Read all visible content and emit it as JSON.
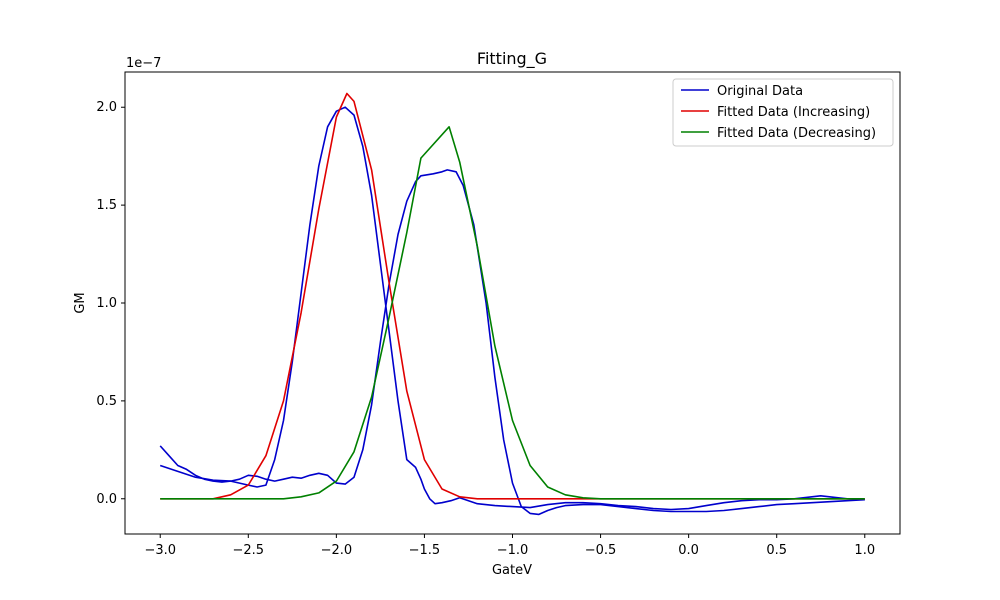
{
  "chart_data": {
    "type": "line",
    "title": "Fitting_G",
    "xlabel": "GateV",
    "ylabel": "GM",
    "y_offset_label": "1e−7",
    "xlim": [
      -3.2,
      1.2
    ],
    "ylim": [
      -0.18,
      2.18
    ],
    "x_ticks": [
      -3.0,
      -2.5,
      -2.0,
      -1.5,
      -1.0,
      -0.5,
      0.0,
      0.5,
      1.0
    ],
    "x_tick_labels": [
      "−3.0",
      "−2.5",
      "−2.0",
      "−1.5",
      "−1.0",
      "−0.5",
      "0.0",
      "0.5",
      "1.0"
    ],
    "y_ticks": [
      0.0,
      0.5,
      1.0,
      1.5,
      2.0
    ],
    "y_tick_labels": [
      "0.0",
      "0.5",
      "1.0",
      "1.5",
      "2.0"
    ],
    "grid": false,
    "legend_position": "top-right",
    "series": [
      {
        "name": "Original Data",
        "color": "#0000cc",
        "points": [
          [
            -3.0,
            0.27
          ],
          [
            -2.95,
            0.22
          ],
          [
            -2.9,
            0.17
          ],
          [
            -2.85,
            0.15
          ],
          [
            -2.8,
            0.12
          ],
          [
            -2.75,
            0.1
          ],
          [
            -2.7,
            0.09
          ],
          [
            -2.65,
            0.085
          ],
          [
            -2.6,
            0.09
          ],
          [
            -2.55,
            0.1
          ],
          [
            -2.5,
            0.12
          ],
          [
            -2.45,
            0.115
          ],
          [
            -2.4,
            0.1
          ],
          [
            -2.35,
            0.09
          ],
          [
            -2.3,
            0.1
          ],
          [
            -2.25,
            0.11
          ],
          [
            -2.2,
            0.105
          ],
          [
            -2.15,
            0.12
          ],
          [
            -2.1,
            0.13
          ],
          [
            -2.05,
            0.12
          ],
          [
            -2.0,
            0.08
          ],
          [
            -1.95,
            0.075
          ],
          [
            -1.9,
            0.11
          ],
          [
            -1.85,
            0.25
          ],
          [
            -1.8,
            0.48
          ],
          [
            -1.75,
            0.8
          ],
          [
            -1.7,
            1.1
          ],
          [
            -1.65,
            1.35
          ],
          [
            -1.6,
            1.52
          ],
          [
            -1.55,
            1.62
          ],
          [
            -1.52,
            1.65
          ],
          [
            -1.45,
            1.66
          ],
          [
            -1.4,
            1.67
          ],
          [
            -1.37,
            1.68
          ],
          [
            -1.32,
            1.67
          ],
          [
            -1.28,
            1.6
          ],
          [
            -1.22,
            1.4
          ],
          [
            -1.15,
            1.0
          ],
          [
            -1.1,
            0.62
          ],
          [
            -1.05,
            0.3
          ],
          [
            -1.0,
            0.08
          ],
          [
            -0.95,
            -0.04
          ],
          [
            -0.9,
            -0.075
          ],
          [
            -0.85,
            -0.08
          ],
          [
            -0.8,
            -0.06
          ],
          [
            -0.75,
            -0.045
          ],
          [
            -0.7,
            -0.035
          ],
          [
            -0.6,
            -0.03
          ],
          [
            -0.5,
            -0.03
          ],
          [
            -0.4,
            -0.04
          ],
          [
            -0.3,
            -0.05
          ],
          [
            -0.2,
            -0.06
          ],
          [
            -0.1,
            -0.065
          ],
          [
            0.0,
            -0.065
          ],
          [
            0.1,
            -0.065
          ],
          [
            0.2,
            -0.06
          ],
          [
            0.3,
            -0.05
          ],
          [
            0.4,
            -0.04
          ],
          [
            0.5,
            -0.03
          ],
          [
            0.6,
            -0.025
          ],
          [
            0.7,
            -0.02
          ],
          [
            0.8,
            -0.015
          ],
          [
            0.9,
            -0.01
          ],
          [
            1.0,
            -0.005
          ]
        ]
      },
      {
        "name": "",
        "color": "#0000cc",
        "points": [
          [
            -3.0,
            0.17
          ],
          [
            -2.9,
            0.14
          ],
          [
            -2.8,
            0.11
          ],
          [
            -2.7,
            0.095
          ],
          [
            -2.6,
            0.09
          ],
          [
            -2.5,
            0.07
          ],
          [
            -2.45,
            0.06
          ],
          [
            -2.4,
            0.07
          ],
          [
            -2.35,
            0.2
          ],
          [
            -2.3,
            0.4
          ],
          [
            -2.25,
            0.7
          ],
          [
            -2.2,
            1.05
          ],
          [
            -2.15,
            1.4
          ],
          [
            -2.1,
            1.7
          ],
          [
            -2.05,
            1.9
          ],
          [
            -2.0,
            1.98
          ],
          [
            -1.95,
            2.0
          ],
          [
            -1.9,
            1.96
          ],
          [
            -1.85,
            1.8
          ],
          [
            -1.8,
            1.55
          ],
          [
            -1.75,
            1.2
          ],
          [
            -1.7,
            0.85
          ],
          [
            -1.65,
            0.5
          ],
          [
            -1.6,
            0.2
          ],
          [
            -1.55,
            0.16
          ],
          [
            -1.52,
            0.1
          ],
          [
            -1.5,
            0.05
          ],
          [
            -1.47,
            0.0
          ],
          [
            -1.44,
            -0.025
          ],
          [
            -1.4,
            -0.02
          ],
          [
            -1.35,
            -0.01
          ],
          [
            -1.3,
            0.005
          ],
          [
            -1.25,
            -0.01
          ],
          [
            -1.2,
            -0.025
          ],
          [
            -1.1,
            -0.035
          ],
          [
            -1.0,
            -0.04
          ],
          [
            -0.9,
            -0.045
          ],
          [
            -0.8,
            -0.03
          ],
          [
            -0.7,
            -0.02
          ],
          [
            -0.6,
            -0.02
          ],
          [
            -0.5,
            -0.025
          ],
          [
            -0.4,
            -0.035
          ],
          [
            -0.3,
            -0.04
          ],
          [
            -0.2,
            -0.05
          ],
          [
            -0.1,
            -0.055
          ],
          [
            0.0,
            -0.05
          ],
          [
            0.1,
            -0.035
          ],
          [
            0.2,
            -0.02
          ],
          [
            0.3,
            -0.01
          ],
          [
            0.4,
            -0.005
          ],
          [
            0.5,
            -0.005
          ],
          [
            0.6,
            0.0
          ],
          [
            0.7,
            0.01
          ],
          [
            0.75,
            0.015
          ],
          [
            0.8,
            0.01
          ],
          [
            0.9,
            0.0
          ],
          [
            1.0,
            -0.005
          ]
        ]
      },
      {
        "name": "Fitted Data (Increasing)",
        "color": "#e00000",
        "points": [
          [
            -3.0,
            0.0
          ],
          [
            -2.7,
            0.0
          ],
          [
            -2.6,
            0.02
          ],
          [
            -2.5,
            0.07
          ],
          [
            -2.4,
            0.22
          ],
          [
            -2.3,
            0.5
          ],
          [
            -2.2,
            0.95
          ],
          [
            -2.1,
            1.48
          ],
          [
            -2.0,
            1.95
          ],
          [
            -1.94,
            2.07
          ],
          [
            -1.9,
            2.03
          ],
          [
            -1.8,
            1.68
          ],
          [
            -1.7,
            1.1
          ],
          [
            -1.6,
            0.55
          ],
          [
            -1.5,
            0.2
          ],
          [
            -1.4,
            0.05
          ],
          [
            -1.3,
            0.01
          ],
          [
            -1.2,
            0.0
          ],
          [
            1.0,
            0.0
          ]
        ]
      },
      {
        "name": "Fitted Data (Decreasing)",
        "color": "#008000",
        "points": [
          [
            -3.0,
            0.0
          ],
          [
            -2.3,
            0.0
          ],
          [
            -2.2,
            0.01
          ],
          [
            -2.1,
            0.03
          ],
          [
            -2.0,
            0.09
          ],
          [
            -1.9,
            0.24
          ],
          [
            -1.8,
            0.52
          ],
          [
            -1.7,
            0.93
          ],
          [
            -1.6,
            1.36
          ],
          [
            -1.52,
            1.74
          ],
          [
            -1.36,
            1.9
          ],
          [
            -1.3,
            1.72
          ],
          [
            -1.2,
            1.29
          ],
          [
            -1.1,
            0.78
          ],
          [
            -1.0,
            0.4
          ],
          [
            -0.9,
            0.17
          ],
          [
            -0.8,
            0.06
          ],
          [
            -0.7,
            0.02
          ],
          [
            -0.6,
            0.005
          ],
          [
            -0.5,
            0.0
          ],
          [
            1.0,
            0.0
          ]
        ]
      }
    ]
  }
}
